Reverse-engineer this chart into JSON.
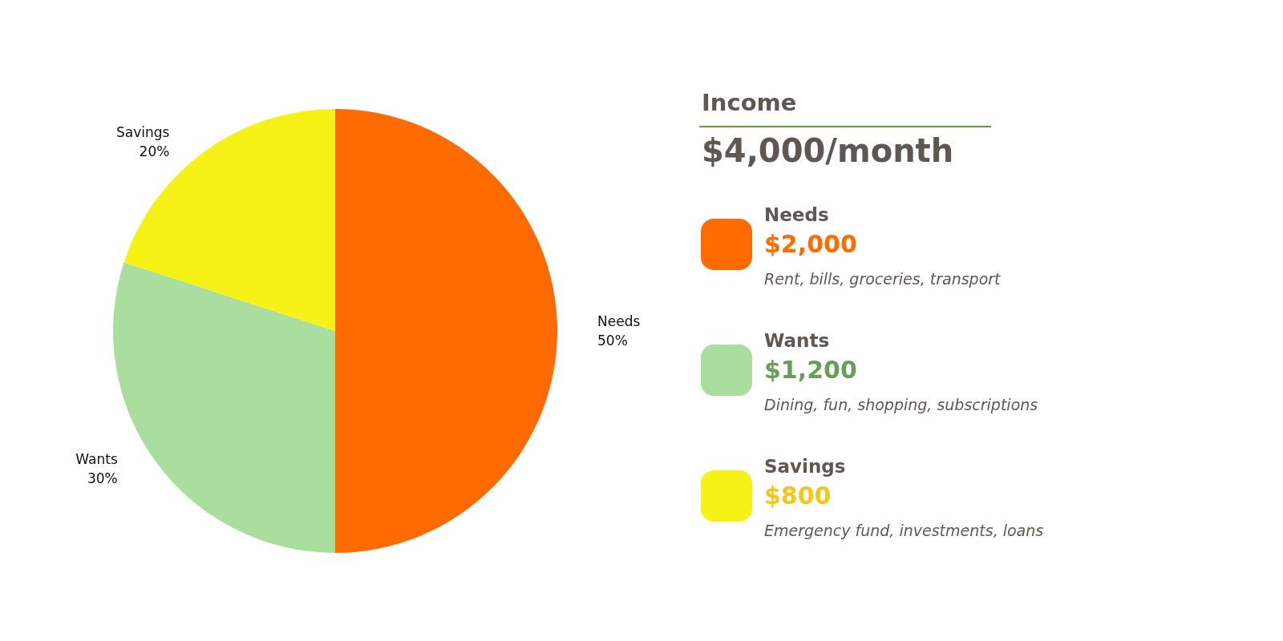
{
  "chart_data": {
    "type": "pie",
    "title": "Income",
    "subtitle": "$4,000/month",
    "categories": [
      "Needs",
      "Wants",
      "Savings"
    ],
    "values": [
      50,
      30,
      20
    ],
    "colors": [
      "#ff6b00",
      "#aade9f",
      "#f7f215"
    ],
    "value_labels": [
      "50%",
      "30%",
      "20%"
    ],
    "annotations": [
      "$2,000",
      "Rent, bills, groceries, transport",
      "$1,200",
      "Dining, fun, shopping, subscriptions",
      "$800",
      "Emergency fund, investments, loans"
    ]
  }
}
